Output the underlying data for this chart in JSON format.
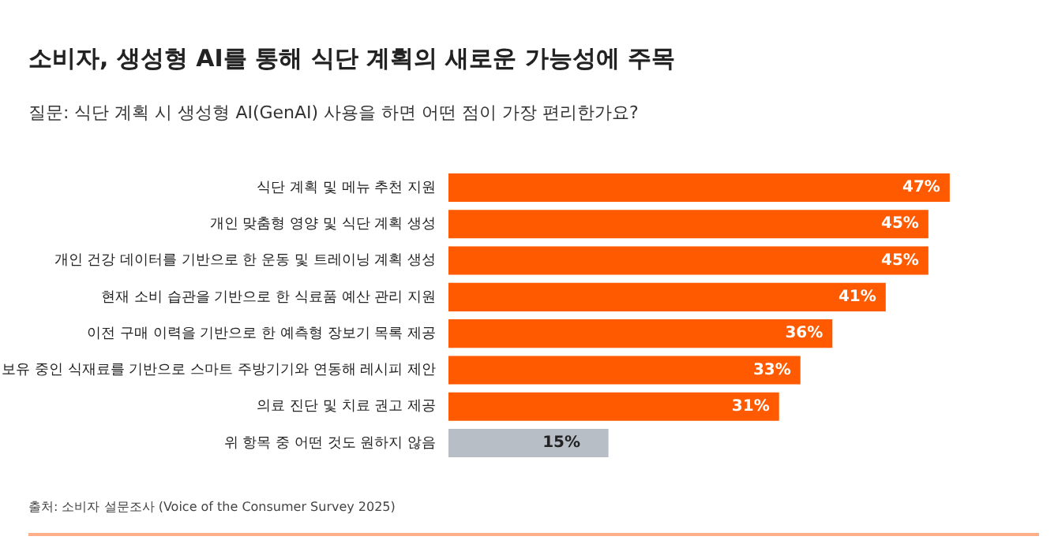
{
  "chart_data": {
    "type": "bar",
    "orientation": "horizontal",
    "title": "소비자, 생성형 AI를 통해 식단 계획의 새로운 가능성에 주목",
    "subtitle": "질문: 식단 계획 시 생성형 AI(GenAI) 사용을 하면 어떤 점이 가장 편리한가요?",
    "categories": [
      "식단 계획 및 메뉴 추천 지원",
      "개인 맞춤형 영양 및 식단 계획 생성",
      "개인 건강 데이터를 기반으로 한 운동 및 트레이닝 계획 생성",
      "현재 소비 습관을 기반으로 한 식료품 예산 관리 지원",
      "이전 구매 이력을 기반으로 한 예측형 장보기 목록 제공",
      "보유 중인 식재료를 기반으로 스마트 주방기기와 연동해 레시피 제안",
      "의료 진단 및 치료 권고 제공",
      "위 항목 중 어떤 것도 원하지 않음"
    ],
    "values": [
      47,
      45,
      45,
      41,
      36,
      33,
      31,
      15
    ],
    "colors": [
      "#ff5a00",
      "#ff5a00",
      "#ff5a00",
      "#ff5a00",
      "#ff5a00",
      "#ff5a00",
      "#ff5a00",
      "#b8bec6"
    ],
    "value_labels": [
      "47%",
      "45%",
      "45%",
      "41%",
      "36%",
      "33%",
      "31%",
      "15%"
    ],
    "annotations": [
      "출처: 소비자 설문조사 (Voice of the Consumer Survey 2025)"
    ],
    "grid": false,
    "legend": false,
    "tick_labels": "y"
  }
}
